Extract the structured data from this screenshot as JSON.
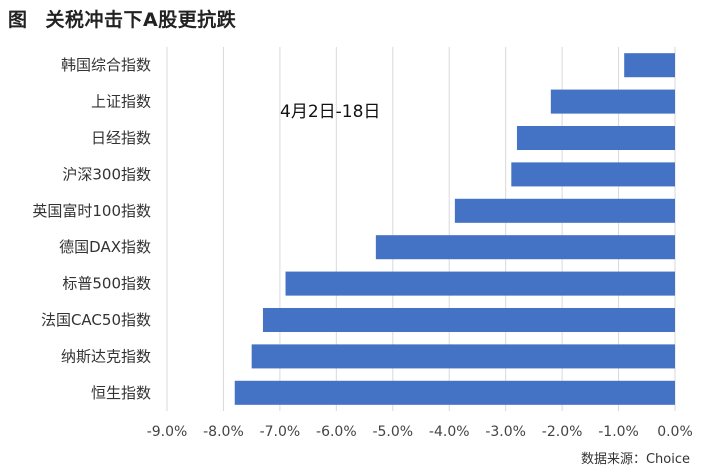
{
  "figure": {
    "label": "图",
    "title": "关税冲击下A股更抗跌",
    "source": "数据来源：Choice"
  },
  "chart_data": {
    "type": "bar",
    "orientation": "horizontal",
    "title": "关税冲击下A股更抗跌",
    "annotation": "4月2日-18日",
    "categories": [
      "韩国综合指数",
      "上证指数",
      "日经指数",
      "沪深300指数",
      "英国富时100指数",
      "德国DAX指数",
      "标普500指数",
      "法国CAC50指数",
      "纳斯达克指数",
      "恒生指数"
    ],
    "values": [
      -0.9,
      -2.2,
      -2.8,
      -2.9,
      -3.9,
      -5.3,
      -6.9,
      -7.3,
      -7.5,
      -7.8
    ],
    "unit": "%",
    "xlim": [
      -9.0,
      0.0
    ],
    "xticks": [
      "-9.0%",
      "-8.0%",
      "-7.0%",
      "-6.0%",
      "-5.0%",
      "-4.0%",
      "-3.0%",
      "-2.0%",
      "-1.0%",
      "0.0%"
    ],
    "grid": true,
    "bar_color": "#4472C4",
    "grid_color": "#d9d9d9"
  }
}
